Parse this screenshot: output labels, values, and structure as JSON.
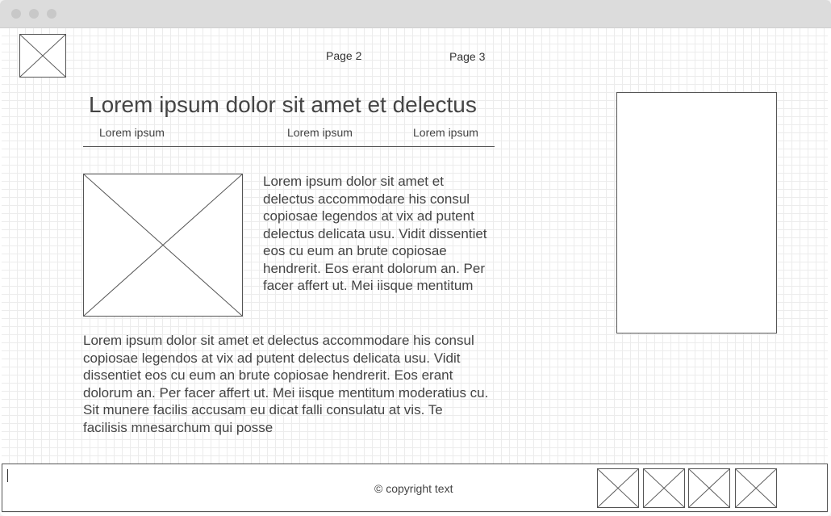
{
  "nav": {
    "links": [
      "Page 2",
      "Page 3"
    ]
  },
  "header": {
    "title": "Lorem ipsum dolor sit amet et delectus",
    "subheadings": [
      "Lorem ipsum",
      "Lorem ipsum",
      "Lorem ipsum"
    ]
  },
  "content": {
    "intro_paragraph": "Lorem ipsum dolor sit amet et delectus accommodare his consul copiosae legendos at vix ad putent delectus delicata usu. Vidit dissentiet eos cu eum an brute copiosae hendrerit. Eos erant dolorum an. Per facer affert ut. Mei iisque mentitum",
    "body_paragraph": "Lorem ipsum dolor sit amet et delectus accommodare his consul copiosae legendos at vix ad putent delectus delicata usu. Vidit dissentiet eos cu eum an brute copiosae hendrerit. Eos erant dolorum an. Per facer affert ut. Mei iisque mentitum moderatius cu. Sit munere facilis accusam eu dicat falli consulatu at vis. Te facilisis mnesarchum qui posse"
  },
  "footer": {
    "copyright": "© copyright text"
  },
  "colors": {
    "titlebar": "#dcdcdc",
    "grid": "#ececec",
    "stroke": "#555555",
    "text": "#444444"
  }
}
